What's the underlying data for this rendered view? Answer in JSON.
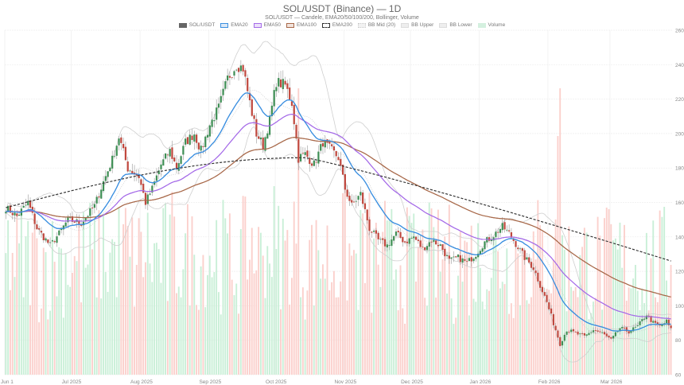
{
  "header": {
    "title": "SOL/USDT (Binance) — 1D",
    "subtitle": "SOL/USDT — Candele, EMA20/50/100/200, Bollinger, Volume"
  },
  "legend": [
    {
      "label": "SOL/USDT",
      "color": "#666666",
      "fill": "#666666",
      "style": "solid"
    },
    {
      "label": "EMA20",
      "color": "#3b8fe0",
      "fill": "#dbe9f8",
      "style": "solid"
    },
    {
      "label": "EMA50",
      "color": "#a56be8",
      "fill": "#ece0fb",
      "style": "solid"
    },
    {
      "label": "EMA100",
      "color": "#a8694a",
      "fill": "#f1e3dc",
      "style": "solid"
    },
    {
      "label": "EMA200",
      "color": "#333333",
      "fill": "#ffffff",
      "style": "dashed"
    },
    {
      "label": "BB Mid (20)",
      "color": "#cccccc",
      "fill": "#f2f2f2",
      "style": "dotted"
    },
    {
      "label": "BB Upper",
      "color": "#dddddd",
      "fill": "#eeeeee",
      "style": "solid"
    },
    {
      "label": "BB Lower",
      "color": "#dddddd",
      "fill": "#eeeeee",
      "style": "solid"
    },
    {
      "label": "Volume",
      "color": "#d4f0df",
      "fill": "#d4f0df",
      "style": "solid"
    }
  ],
  "colors": {
    "up": "#3f8f55",
    "down": "#c0483e",
    "vol_up": "#c9efd7",
    "vol_down": "#fbd0cc",
    "ema20": "#3b8fe0",
    "ema50": "#a56be8",
    "ema100": "#a8694a",
    "ema200": "#333333",
    "bb": "#cfcfcf",
    "grid": "#eeeeee"
  },
  "chart_data": {
    "type": "candlestick",
    "title": "SOL/USDT (Binance) — 1D",
    "subtitle": "SOL/USDT — Candele, EMA20/50/100/200, Bollinger, Volume",
    "xlabel": "",
    "ylabel": "",
    "ylim": [
      60,
      260
    ],
    "y_ticks": [
      60,
      80,
      100,
      120,
      140,
      160,
      180,
      200,
      220,
      240,
      260
    ],
    "x_ticks": [
      "Jun 1",
      "Jul 2025",
      "Aug 2025",
      "Sep 2025",
      "Oct 2025",
      "Nov 2025",
      "Dec 2025",
      "Jan 2026",
      "Feb 2026",
      "Mar 2026"
    ],
    "x_tick_day_index": [
      0,
      30,
      61,
      92,
      122,
      153,
      183,
      214,
      245,
      273
    ],
    "start_date": "2025-06-01",
    "days": 301,
    "grid": true,
    "legend_position": "top",
    "close_keypoints": [
      {
        "day": 0,
        "close": 157
      },
      {
        "day": 5,
        "close": 152
      },
      {
        "day": 10,
        "close": 160
      },
      {
        "day": 14,
        "close": 145
      },
      {
        "day": 20,
        "close": 135
      },
      {
        "day": 24,
        "close": 142
      },
      {
        "day": 28,
        "close": 150
      },
      {
        "day": 34,
        "close": 148
      },
      {
        "day": 40,
        "close": 158
      },
      {
        "day": 44,
        "close": 172
      },
      {
        "day": 48,
        "close": 185
      },
      {
        "day": 51,
        "close": 198
      },
      {
        "day": 55,
        "close": 180
      },
      {
        "day": 60,
        "close": 175
      },
      {
        "day": 63,
        "close": 160
      },
      {
        "day": 66,
        "close": 168
      },
      {
        "day": 70,
        "close": 182
      },
      {
        "day": 74,
        "close": 190
      },
      {
        "day": 77,
        "close": 180
      },
      {
        "day": 81,
        "close": 195
      },
      {
        "day": 85,
        "close": 200
      },
      {
        "day": 88,
        "close": 190
      },
      {
        "day": 92,
        "close": 205
      },
      {
        "day": 96,
        "close": 215
      },
      {
        "day": 100,
        "close": 232
      },
      {
        "day": 104,
        "close": 240
      },
      {
        "day": 107,
        "close": 238
      },
      {
        "day": 110,
        "close": 218
      },
      {
        "day": 113,
        "close": 200
      },
      {
        "day": 116,
        "close": 193
      },
      {
        "day": 119,
        "close": 208
      },
      {
        "day": 122,
        "close": 230
      },
      {
        "day": 126,
        "close": 228
      },
      {
        "day": 129,
        "close": 218
      },
      {
        "day": 132,
        "close": 186
      },
      {
        "day": 135,
        "close": 188
      },
      {
        "day": 139,
        "close": 182
      },
      {
        "day": 143,
        "close": 195
      },
      {
        "day": 147,
        "close": 190
      },
      {
        "day": 150,
        "close": 186
      },
      {
        "day": 153,
        "close": 168
      },
      {
        "day": 156,
        "close": 158
      },
      {
        "day": 160,
        "close": 165
      },
      {
        "day": 164,
        "close": 145
      },
      {
        "day": 168,
        "close": 138
      },
      {
        "day": 172,
        "close": 135
      },
      {
        "day": 176,
        "close": 142
      },
      {
        "day": 180,
        "close": 137
      },
      {
        "day": 184,
        "close": 140
      },
      {
        "day": 188,
        "close": 133
      },
      {
        "day": 192,
        "close": 138
      },
      {
        "day": 196,
        "close": 135
      },
      {
        "day": 200,
        "close": 126
      },
      {
        "day": 204,
        "close": 128
      },
      {
        "day": 208,
        "close": 125
      },
      {
        "day": 212,
        "close": 130
      },
      {
        "day": 216,
        "close": 137
      },
      {
        "day": 220,
        "close": 141
      },
      {
        "day": 224,
        "close": 146
      },
      {
        "day": 227,
        "close": 142
      },
      {
        "day": 230,
        "close": 136
      },
      {
        "day": 234,
        "close": 128
      },
      {
        "day": 238,
        "close": 122
      },
      {
        "day": 241,
        "close": 112
      },
      {
        "day": 244,
        "close": 102
      },
      {
        "day": 247,
        "close": 90
      },
      {
        "day": 250,
        "close": 78
      },
      {
        "day": 253,
        "close": 86
      },
      {
        "day": 257,
        "close": 84
      },
      {
        "day": 261,
        "close": 82
      },
      {
        "day": 265,
        "close": 86
      },
      {
        "day": 269,
        "close": 84
      },
      {
        "day": 273,
        "close": 80
      },
      {
        "day": 277,
        "close": 87
      },
      {
        "day": 281,
        "close": 85
      },
      {
        "day": 285,
        "close": 88
      },
      {
        "day": 289,
        "close": 95
      },
      {
        "day": 292,
        "close": 90
      },
      {
        "day": 295,
        "close": 88
      },
      {
        "day": 298,
        "close": 91
      },
      {
        "day": 300,
        "close": 86
      }
    ],
    "series": [
      {
        "name": "SOL/USDT",
        "type": "candlestick"
      },
      {
        "name": "EMA20",
        "type": "line"
      },
      {
        "name": "EMA50",
        "type": "line"
      },
      {
        "name": "EMA100",
        "type": "line"
      },
      {
        "name": "EMA200",
        "type": "line",
        "style": "dashed",
        "start_value": 157,
        "end_value": 126
      },
      {
        "name": "BB Mid (20)",
        "type": "line",
        "style": "dotted"
      },
      {
        "name": "BB Upper",
        "type": "line"
      },
      {
        "name": "BB Lower",
        "type": "line"
      },
      {
        "name": "Volume",
        "type": "bar",
        "overlay": true
      }
    ]
  }
}
